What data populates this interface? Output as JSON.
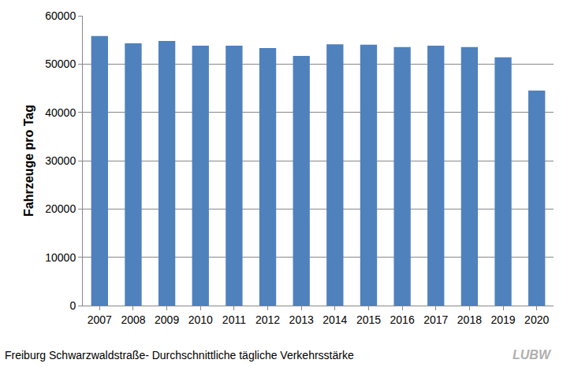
{
  "chart_data": {
    "type": "bar",
    "title": "Freiburg Schwarzwaldstraße- Durchschnittliche tägliche Verkehrsstärke",
    "y_label": "Fahrzeuge pro Tag",
    "categories": [
      "2007",
      "2008",
      "2009",
      "2010",
      "2011",
      "2012",
      "2013",
      "2014",
      "2015",
      "2016",
      "2017",
      "2018",
      "2019",
      "2020"
    ],
    "values": [
      55800,
      54300,
      54800,
      53800,
      53800,
      53300,
      51700,
      54100,
      54000,
      53500,
      53800,
      53500,
      51400,
      44500
    ],
    "color": "#4f81bd",
    "ylim": [
      0,
      60000
    ],
    "yticks": [
      0,
      10000,
      20000,
      30000,
      40000,
      50000,
      60000
    ],
    "grid": true,
    "annotations": [
      "LUBW"
    ]
  }
}
